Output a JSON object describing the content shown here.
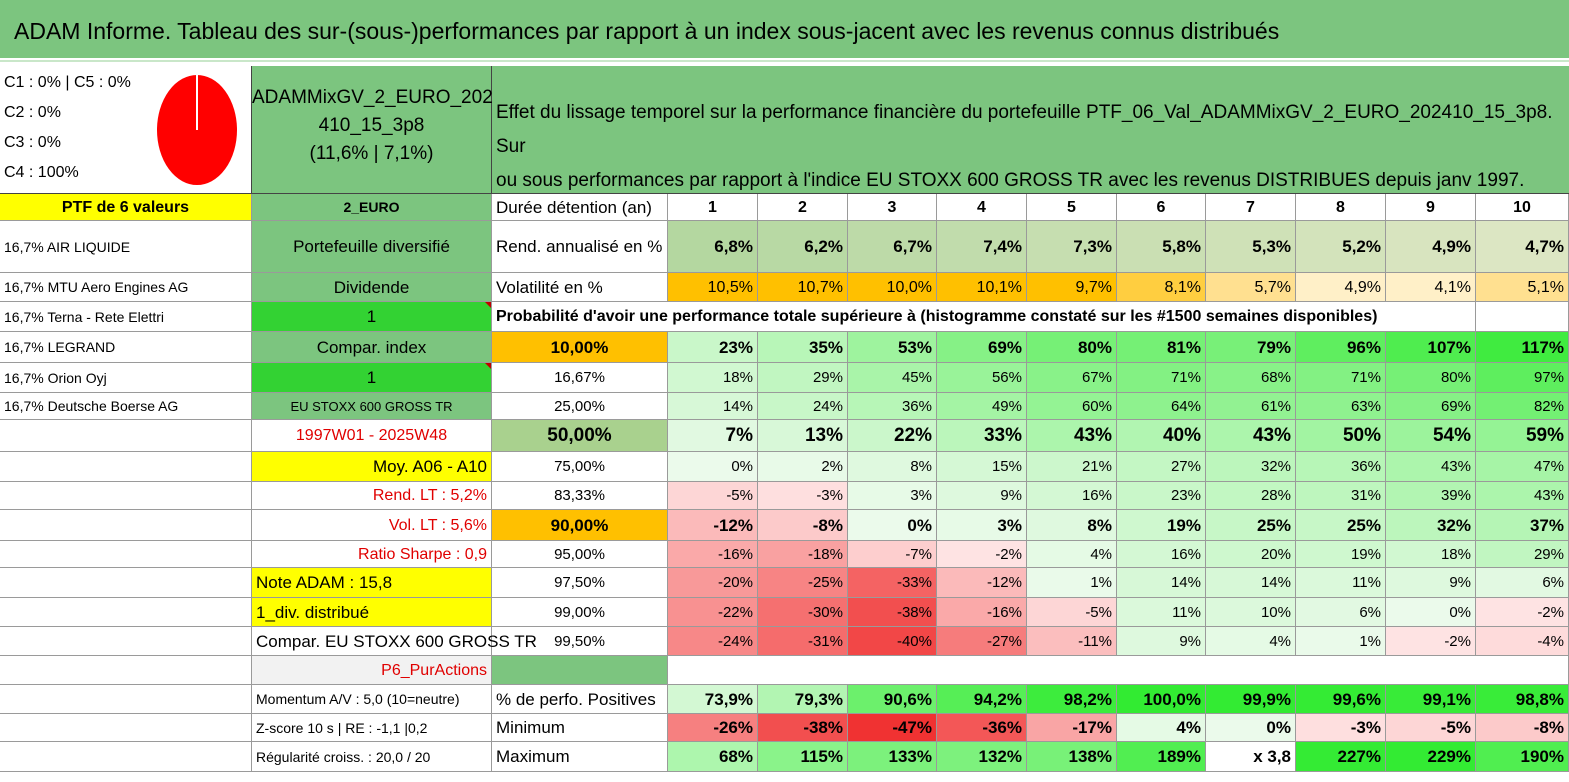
{
  "title": "ADAM Informe. Tableau des sur-(sous-)performances par rapport à un index sous-jacent avec les revenus connus distribués",
  "allocation": [
    "C1 : 0% | C5 : 0%",
    "C2 : 0%",
    "C3 : 0%",
    "C4 : 100%"
  ],
  "pie_color": "#ff0000",
  "portfolio_name_lines": [
    "ADAMMixGV_2_EURO_202",
    "410_15_3p8",
    "(11,6% | 7,1%)"
  ],
  "description_lines": [
    "Effet du lissage temporel sur la performance financière du portefeuille PTF_06_Val_ADAMMixGV_2_EURO_202410_15_3p8. Sur",
    "ou sous performances par rapport à l'indice EU STOXX 600 GROSS TR avec les revenus DISTRIBUES depuis janv 1997."
  ],
  "holdings_header": "PTF de 6 valeurs",
  "holdings": [
    "16,7% AIR LIQUIDE",
    "16,7% MTU Aero Engines AG",
    "16,7% Terna - Rete Elettri",
    "16,7% LEGRAND",
    "16,7% Orion Oyj",
    "16,7% Deutsche Boerse AG"
  ],
  "col2": {
    "currency": "2_EURO",
    "type": "Portefeuille diversifié",
    "dividend_label": "Dividende",
    "dividend_value": "1",
    "compar_label": "Compar. index",
    "compar_value": "1",
    "index_name": "EU STOXX 600 GROSS TR",
    "period": "1997W01 - 2025W48",
    "moy": "Moy. A06 - A10",
    "rend_lt": "Rend. LT : 5,2%",
    "vol_lt": "Vol. LT : 5,6%",
    "sharpe": "Ratio Sharpe : 0,9",
    "note": "Note ADAM : 15,8",
    "div": "1_div. distribué",
    "compar_full": "Compar. EU STOXX 600 GROSS TR",
    "p6": "P6_PurActions",
    "momentum": "Momentum A/V : 5,0 (10=neutre)",
    "zscore": "Z-score 10 s | RE : -1,1 |0,2",
    "regularite": "Régularité croiss. : 20,0 / 20"
  },
  "table": {
    "duration_label": "Durée détention (an)",
    "years": [
      "1",
      "2",
      "3",
      "4",
      "5",
      "6",
      "7",
      "8",
      "9",
      "10"
    ],
    "rend_label": "Rend. annualisé en %",
    "rend": [
      "6,8%",
      "6,2%",
      "6,7%",
      "7,4%",
      "7,3%",
      "5,8%",
      "5,3%",
      "5,2%",
      "4,9%",
      "4,7%"
    ],
    "vol_label": "Volatilité en %",
    "vol": [
      "10,5%",
      "10,7%",
      "10,0%",
      "10,1%",
      "9,7%",
      "8,1%",
      "5,7%",
      "4,9%",
      "4,1%",
      "5,1%"
    ],
    "prob_header": "Probabilité d'avoir une performance totale supérieure à (histogramme constaté sur les #1500 semaines disponibles)",
    "prob_rows": [
      {
        "p": "10,00%",
        "v": [
          "23%",
          "35%",
          "53%",
          "69%",
          "80%",
          "81%",
          "79%",
          "96%",
          "107%",
          "117%"
        ]
      },
      {
        "p": "16,67%",
        "v": [
          "18%",
          "29%",
          "45%",
          "56%",
          "67%",
          "71%",
          "68%",
          "71%",
          "80%",
          "97%"
        ]
      },
      {
        "p": "25,00%",
        "v": [
          "14%",
          "24%",
          "36%",
          "49%",
          "60%",
          "64%",
          "61%",
          "63%",
          "69%",
          "82%"
        ]
      },
      {
        "p": "50,00%",
        "v": [
          "7%",
          "13%",
          "22%",
          "33%",
          "43%",
          "40%",
          "43%",
          "50%",
          "54%",
          "59%"
        ]
      },
      {
        "p": "75,00%",
        "v": [
          "0%",
          "2%",
          "8%",
          "15%",
          "21%",
          "27%",
          "32%",
          "36%",
          "43%",
          "47%"
        ]
      },
      {
        "p": "83,33%",
        "v": [
          "-5%",
          "-3%",
          "3%",
          "9%",
          "16%",
          "23%",
          "28%",
          "31%",
          "39%",
          "43%"
        ]
      },
      {
        "p": "90,00%",
        "v": [
          "-12%",
          "-8%",
          "0%",
          "3%",
          "8%",
          "19%",
          "25%",
          "25%",
          "32%",
          "37%"
        ]
      },
      {
        "p": "95,00%",
        "v": [
          "-16%",
          "-18%",
          "-7%",
          "-2%",
          "4%",
          "16%",
          "20%",
          "19%",
          "18%",
          "29%"
        ]
      },
      {
        "p": "97,50%",
        "v": [
          "-20%",
          "-25%",
          "-33%",
          "-12%",
          "1%",
          "14%",
          "14%",
          "11%",
          "9%",
          "6%"
        ]
      },
      {
        "p": "99,00%",
        "v": [
          "-22%",
          "-30%",
          "-38%",
          "-16%",
          "-5%",
          "11%",
          "10%",
          "6%",
          "0%",
          "-2%"
        ]
      },
      {
        "p": "99,50%",
        "v": [
          "-24%",
          "-31%",
          "-40%",
          "-27%",
          "-11%",
          "9%",
          "4%",
          "1%",
          "-2%",
          "-4%"
        ]
      }
    ],
    "pos_label": "% de perfo. Positives",
    "pos": [
      "73,9%",
      "79,3%",
      "90,6%",
      "94,2%",
      "98,2%",
      "100,0%",
      "99,9%",
      "99,6%",
      "99,1%",
      "98,8%"
    ],
    "min_label": "Minimum",
    "min": [
      "-26%",
      "-38%",
      "-47%",
      "-36%",
      "-17%",
      "4%",
      "0%",
      "-3%",
      "-5%",
      "-8%"
    ],
    "max_label": "Maximum",
    "max": [
      "68%",
      "115%",
      "133%",
      "132%",
      "138%",
      "189%",
      "x 3,8",
      "227%",
      "229%",
      "190%"
    ]
  }
}
